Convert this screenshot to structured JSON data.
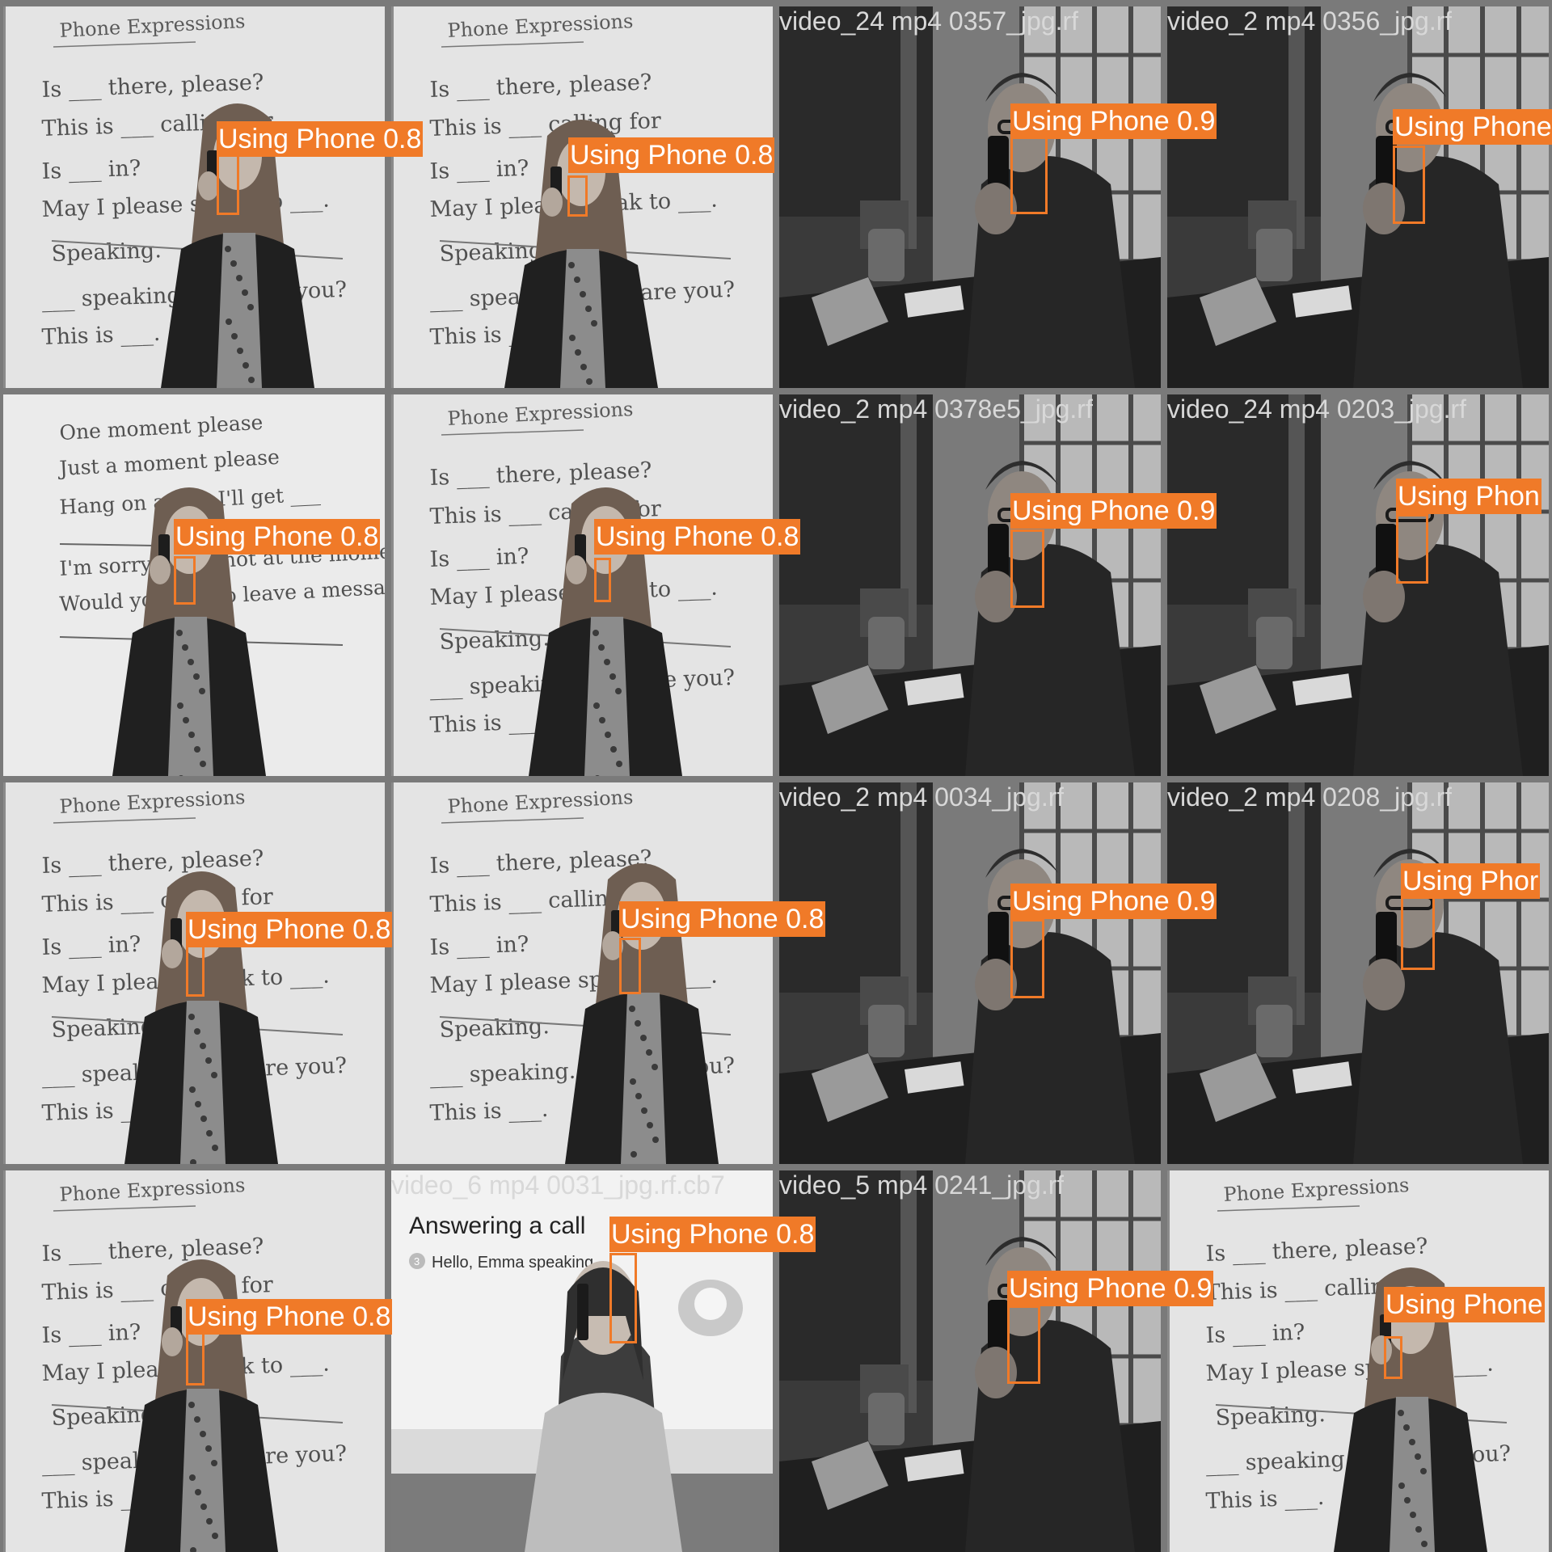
{
  "detection": {
    "class_name": "Using Phone",
    "box_color": "#f07a28",
    "label_text_color": "#ffffff"
  },
  "tiles": [
    {
      "scene": "board",
      "filename": "",
      "detections": [
        {
          "label": "Using Phone 0.8",
          "confidence": 0.8
        }
      ]
    },
    {
      "scene": "board",
      "filename": "",
      "detections": [
        {
          "label": "Using Phone 0.8",
          "confidence": 0.8
        }
      ]
    },
    {
      "scene": "man",
      "filename": "video_24 mp4 0357_jpg.rf",
      "detections": [
        {
          "label": "Using Phone 0.9",
          "confidence": 0.9
        }
      ]
    },
    {
      "scene": "man",
      "filename": "video_2 mp4 0356_jpg.rf",
      "detections": [
        {
          "label": "Using Phone",
          "confidence": null
        }
      ]
    },
    {
      "scene": "board2",
      "filename": "",
      "detections": [
        {
          "label": "Using Phone 0.8",
          "confidence": 0.8
        }
      ]
    },
    {
      "scene": "board",
      "filename": "",
      "detections": [
        {
          "label": "Using Phone 0.8",
          "confidence": 0.8
        }
      ]
    },
    {
      "scene": "man",
      "filename": "video_2 mp4 0378e5_jpg.rf",
      "detections": [
        {
          "label": "Using Phone 0.9",
          "confidence": 0.9
        }
      ]
    },
    {
      "scene": "man",
      "filename": "video_24 mp4 0203_jpg.rf",
      "detections": [
        {
          "label": "Using Phon",
          "confidence": null
        }
      ]
    },
    {
      "scene": "board",
      "filename": "",
      "detections": [
        {
          "label": "Using Phone 0.8",
          "confidence": 0.8
        }
      ]
    },
    {
      "scene": "board",
      "filename": "",
      "detections": [
        {
          "label": "Using Phone 0.8",
          "confidence": 0.8
        }
      ]
    },
    {
      "scene": "man",
      "filename": "video_2 mp4 0034_jpg.rf",
      "detections": [
        {
          "label": "Using Phone 0.9",
          "confidence": 0.9
        }
      ]
    },
    {
      "scene": "man",
      "filename": "video_2 mp4 0208_jpg.rf",
      "detections": [
        {
          "label": "Using Phor",
          "confidence": null
        }
      ]
    },
    {
      "scene": "board",
      "filename": "",
      "detections": [
        {
          "label": "Using Phone 0.8",
          "confidence": 0.8
        }
      ]
    },
    {
      "scene": "answering",
      "filename": "video_6 mp4 0031_jpg.rf.cb7",
      "detections": [
        {
          "label": "Using Phone 0.8",
          "confidence": 0.8
        }
      ]
    },
    {
      "scene": "man",
      "filename": "video_5 mp4 0241_jpg.rf",
      "detections": [
        {
          "label": "Using Phone 0.9",
          "confidence": 0.9
        }
      ]
    },
    {
      "scene": "board",
      "filename": "",
      "detections": [
        {
          "label": "Using Phone",
          "confidence": null
        }
      ]
    }
  ],
  "board_text": {
    "title": "Phone Expressions",
    "lines": [
      "Is ___ there, please?",
      "This is ___ calling for",
      "Is ___ in?",
      "May I please speak to ___.",
      "Speaking.",
      "___ speaking. How are you?",
      "This is ___."
    ]
  },
  "board2_text": {
    "lines": [
      "One moment please",
      "Just a moment please",
      "Hang on a sec. I'll get ___",
      "I'm sorry. She's not at the moment.",
      "Would you like to leave a message?"
    ]
  },
  "answering_text": {
    "title": "Answering a call",
    "step_number": "3",
    "line": "Hello, Emma speaking."
  }
}
